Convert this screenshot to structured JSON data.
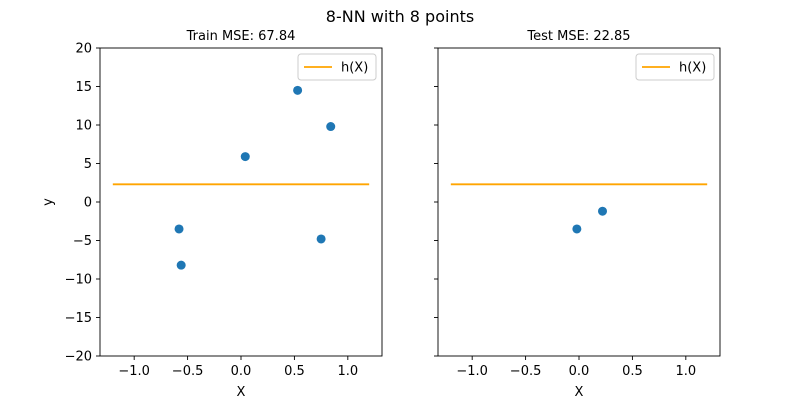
{
  "figure": {
    "suptitle": "8-NN with 8 points"
  },
  "chart_data": [
    {
      "type": "scatter",
      "title": "Train MSE: 67.84",
      "xlabel": "X",
      "ylabel": "y",
      "xlim": [
        -1.32,
        1.32
      ],
      "ylim": [
        -20,
        20
      ],
      "xticks": [
        -1.0,
        -0.5,
        0.0,
        0.5,
        1.0
      ],
      "xtick_labels": [
        "−1.0",
        "−0.5",
        "0.0",
        "0.5",
        "1.0"
      ],
      "yticks": [
        -20,
        -15,
        -10,
        -5,
        0,
        5,
        10,
        15,
        20
      ],
      "ytick_labels": [
        "−20",
        "−15",
        "−10",
        "−5",
        "0",
        "5",
        "10",
        "15",
        "20"
      ],
      "show_ytick_labels": true,
      "grid": false,
      "legend_position": "top-right",
      "points": {
        "color": "#1f77b4",
        "x": [
          -0.58,
          -0.56,
          0.04,
          0.53,
          0.75,
          0.84
        ],
        "y": [
          -3.5,
          -8.2,
          5.9,
          14.5,
          -4.8,
          9.8
        ]
      },
      "line": {
        "name": "h(X)",
        "color": "#ffa500",
        "x": [
          -1.2,
          1.2
        ],
        "y": [
          2.3,
          2.3
        ]
      }
    },
    {
      "type": "scatter",
      "title": "Test MSE: 22.85",
      "xlabel": "X",
      "ylabel": "",
      "xlim": [
        -1.32,
        1.32
      ],
      "ylim": [
        -20,
        20
      ],
      "xticks": [
        -1.0,
        -0.5,
        0.0,
        0.5,
        1.0
      ],
      "xtick_labels": [
        "−1.0",
        "−0.5",
        "0.0",
        "0.5",
        "1.0"
      ],
      "yticks": [
        -20,
        -15,
        -10,
        -5,
        0,
        5,
        10,
        15,
        20
      ],
      "ytick_labels": [],
      "show_ytick_labels": false,
      "grid": false,
      "legend_position": "top-right",
      "points": {
        "color": "#1f77b4",
        "x": [
          -0.02,
          0.22
        ],
        "y": [
          -3.5,
          -1.2
        ]
      },
      "line": {
        "name": "h(X)",
        "color": "#ffa500",
        "x": [
          -1.2,
          1.2
        ],
        "y": [
          2.3,
          2.3
        ]
      }
    }
  ]
}
